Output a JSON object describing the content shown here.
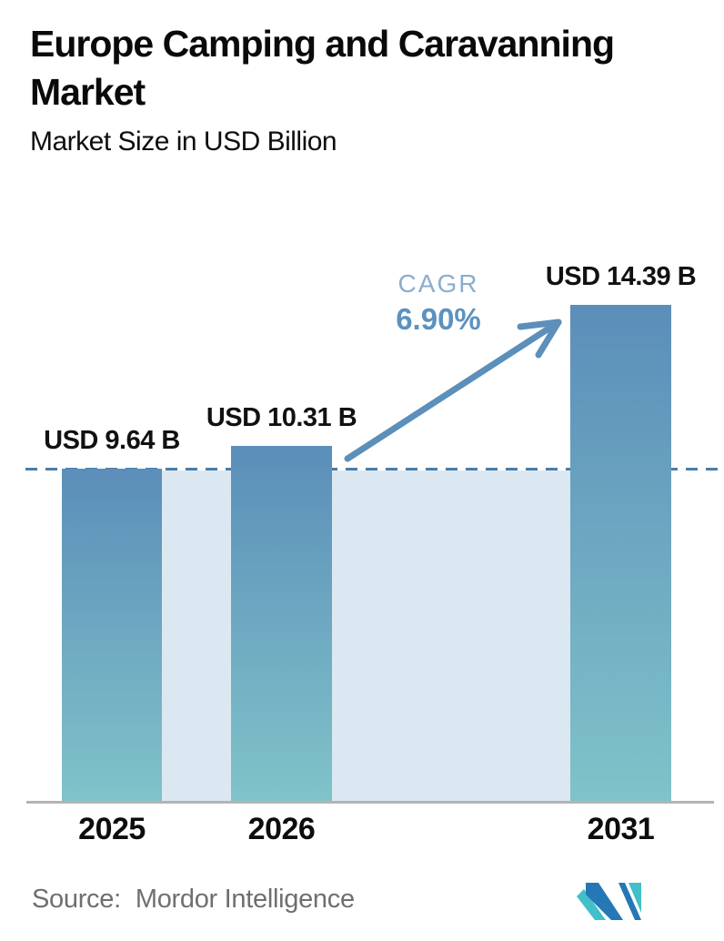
{
  "header": {
    "title_line1": "Europe Camping and Caravanning",
    "title_line2": "Market",
    "subtitle": "Market Size in USD Billion"
  },
  "chart_data": {
    "type": "bar",
    "title": "Europe Camping and Caravanning Market",
    "subtitle": "Market Size in USD Billion",
    "unit": "USD Billion",
    "categories": [
      "2025",
      "2026",
      "2031"
    ],
    "values": [
      9.64,
      10.31,
      14.39
    ],
    "value_labels": [
      "USD 9.64 B",
      "USD 10.31 B",
      "USD 14.39 B"
    ],
    "ylim": [
      0,
      14.39
    ],
    "grid": false,
    "legend": "none",
    "baseline_marker": {
      "type": "dashed-line",
      "at_value": 9.64
    },
    "annotations": {
      "cagr_label": "CAGR",
      "cagr_value": "6.90%"
    }
  },
  "annotations": {
    "cagr_label": "CAGR",
    "cagr_value": "6.90%"
  },
  "footer": {
    "source_label": "Source:",
    "source_name": "Mordor Intelligence",
    "logo": "mordor-intelligence-logo"
  },
  "colors": {
    "bar_gradient_top": "#5b8eb9",
    "bar_gradient_bottom": "#80c3c9",
    "plot_band": "#dce8f1",
    "dashed_line": "#4d7ca6",
    "arrow": "#5c8fba",
    "cagr_label": "#8aaecd",
    "cagr_value": "#5c92bf",
    "axis_line": "#b4b4b4",
    "source_text": "#6f6f6f",
    "logo_teal": "#41c0c9",
    "logo_blue": "#2578b5",
    "text": "#0d0d0d"
  }
}
